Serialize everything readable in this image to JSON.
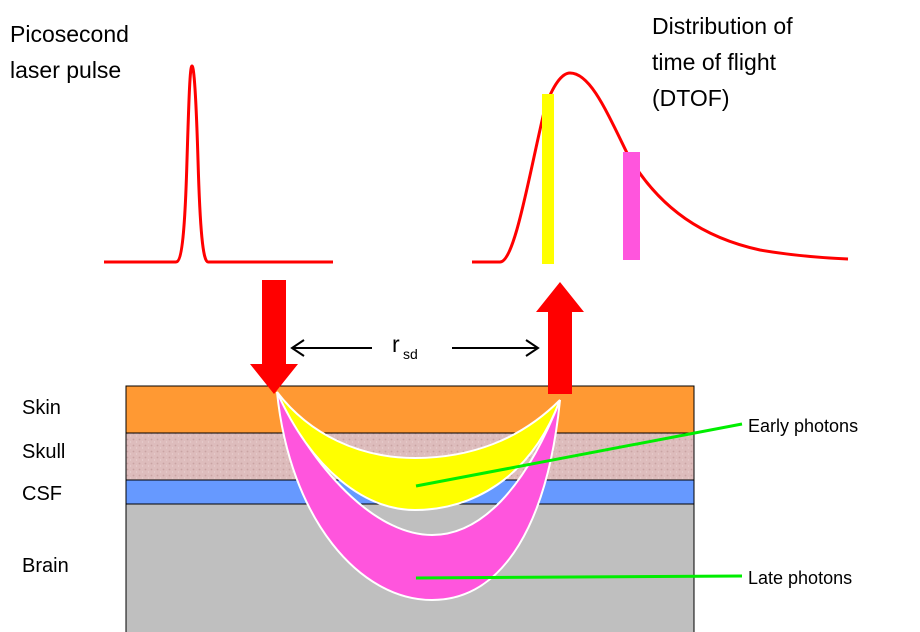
{
  "pulse": {
    "label_line1": "Picosecond",
    "label_line2": "laser pulse"
  },
  "dtof": {
    "label_line1": "Distribution of",
    "label_line2": "time of flight",
    "label_line3": "(DTOF)"
  },
  "separation": {
    "symbol": "r",
    "subscript": "sd"
  },
  "layers": {
    "skin": "Skin",
    "skull": "Skull",
    "csf": "CSF",
    "brain": "Brain"
  },
  "photons": {
    "early": "Early photons",
    "late": "Late photons"
  },
  "colors": {
    "skin": "#ff9933",
    "skull": "#ddbcbc",
    "csf": "#6699ff",
    "brain": "#bfbfbf",
    "early": "#ffff00",
    "late": "#ff55dd",
    "curve": "#ff0000",
    "arrow": "#ff0000",
    "pointer": "#00ee00"
  }
}
